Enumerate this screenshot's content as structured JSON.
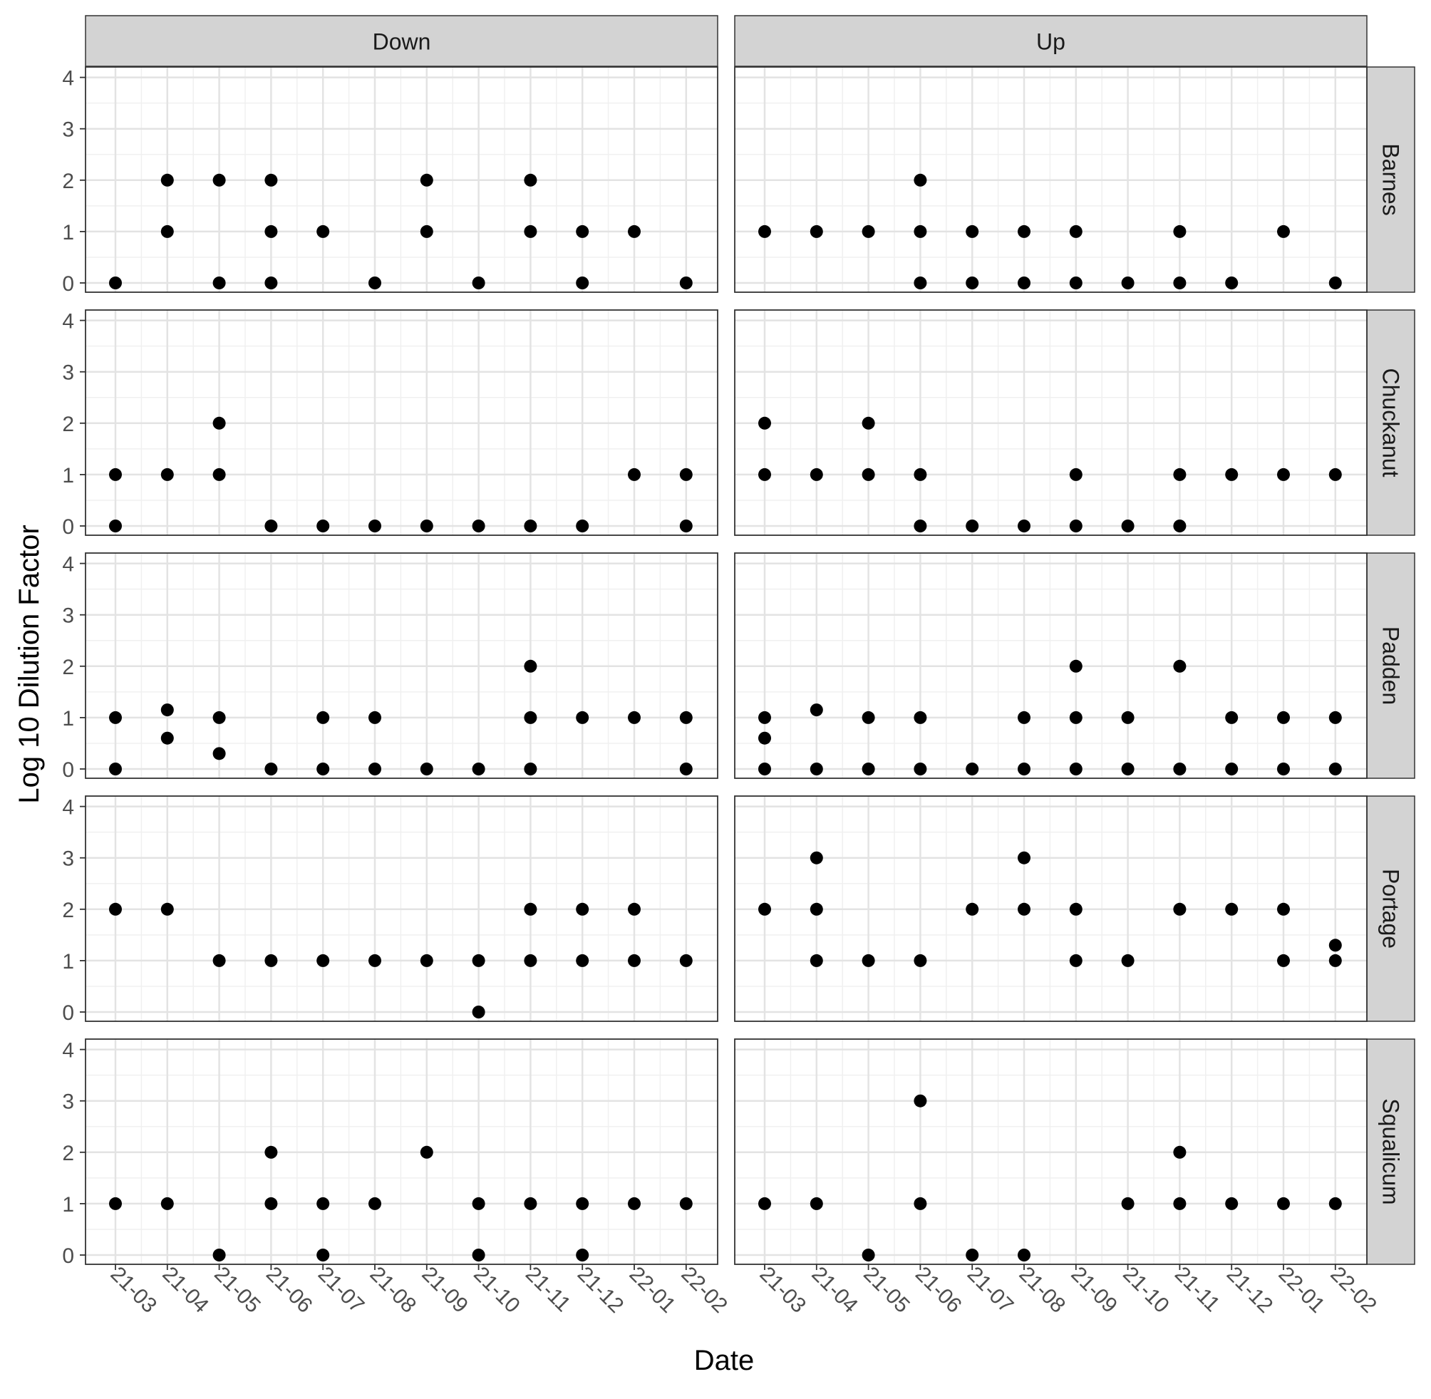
{
  "chart_data": {
    "type": "scatter",
    "xlabel": "Date",
    "ylabel": "Log 10 Dilution Factor",
    "x_ticks": [
      "21-03",
      "21-04",
      "21-05",
      "21-06",
      "21-07",
      "21-08",
      "21-09",
      "21-10",
      "21-11",
      "21-12",
      "22-01",
      "22-02"
    ],
    "y_ticks": [
      0,
      1,
      2,
      3,
      4
    ],
    "ylim": [
      0,
      4
    ],
    "grid": true,
    "point_color": "#000000",
    "strip_color": "#d3d3d3",
    "column_facets": [
      "Down",
      "Up"
    ],
    "row_facets": [
      "Barnes",
      "Chuckanut",
      "Padden",
      "Portage",
      "Squalicum"
    ],
    "panels": [
      {
        "site": "Barnes",
        "direction": "Down",
        "points": [
          [
            "21-03",
            0
          ],
          [
            "21-04",
            1
          ],
          [
            "21-04",
            2
          ],
          [
            "21-05",
            0
          ],
          [
            "21-05",
            2
          ],
          [
            "21-06",
            0
          ],
          [
            "21-06",
            1
          ],
          [
            "21-06",
            2
          ],
          [
            "21-07",
            1
          ],
          [
            "21-08",
            0
          ],
          [
            "21-09",
            1
          ],
          [
            "21-09",
            2
          ],
          [
            "21-10",
            0
          ],
          [
            "21-11",
            1
          ],
          [
            "21-11",
            2
          ],
          [
            "21-12",
            0
          ],
          [
            "21-12",
            1
          ],
          [
            "22-01",
            1
          ],
          [
            "22-02",
            0
          ]
        ]
      },
      {
        "site": "Barnes",
        "direction": "Up",
        "points": [
          [
            "21-03",
            1
          ],
          [
            "21-04",
            1
          ],
          [
            "21-05",
            1
          ],
          [
            "21-06",
            0
          ],
          [
            "21-06",
            1
          ],
          [
            "21-06",
            2
          ],
          [
            "21-07",
            0
          ],
          [
            "21-07",
            1
          ],
          [
            "21-08",
            0
          ],
          [
            "21-08",
            1
          ],
          [
            "21-09",
            0
          ],
          [
            "21-09",
            1
          ],
          [
            "21-10",
            0
          ],
          [
            "21-11",
            0
          ],
          [
            "21-11",
            1
          ],
          [
            "21-12",
            0
          ],
          [
            "22-01",
            1
          ],
          [
            "22-02",
            0
          ]
        ]
      },
      {
        "site": "Chuckanut",
        "direction": "Down",
        "points": [
          [
            "21-03",
            0
          ],
          [
            "21-03",
            1
          ],
          [
            "21-04",
            1
          ],
          [
            "21-05",
            1
          ],
          [
            "21-05",
            2
          ],
          [
            "21-06",
            0
          ],
          [
            "21-07",
            0
          ],
          [
            "21-08",
            0
          ],
          [
            "21-09",
            0
          ],
          [
            "21-10",
            0
          ],
          [
            "21-11",
            0
          ],
          [
            "21-12",
            0
          ],
          [
            "22-01",
            1
          ],
          [
            "22-02",
            0
          ],
          [
            "22-02",
            1
          ]
        ]
      },
      {
        "site": "Chuckanut",
        "direction": "Up",
        "points": [
          [
            "21-03",
            1
          ],
          [
            "21-03",
            2
          ],
          [
            "21-04",
            1
          ],
          [
            "21-05",
            1
          ],
          [
            "21-05",
            2
          ],
          [
            "21-06",
            0
          ],
          [
            "21-06",
            1
          ],
          [
            "21-07",
            0
          ],
          [
            "21-08",
            0
          ],
          [
            "21-09",
            0
          ],
          [
            "21-09",
            1
          ],
          [
            "21-10",
            0
          ],
          [
            "21-11",
            0
          ],
          [
            "21-11",
            1
          ],
          [
            "21-12",
            1
          ],
          [
            "22-01",
            1
          ],
          [
            "22-02",
            1
          ]
        ]
      },
      {
        "site": "Padden",
        "direction": "Down",
        "points": [
          [
            "21-03",
            0
          ],
          [
            "21-03",
            1
          ],
          [
            "21-04",
            0.6
          ],
          [
            "21-04",
            1.15
          ],
          [
            "21-05",
            0.3
          ],
          [
            "21-05",
            1
          ],
          [
            "21-06",
            0
          ],
          [
            "21-07",
            0
          ],
          [
            "21-07",
            1
          ],
          [
            "21-08",
            0
          ],
          [
            "21-08",
            1
          ],
          [
            "21-09",
            0
          ],
          [
            "21-10",
            0
          ],
          [
            "21-11",
            0
          ],
          [
            "21-11",
            1
          ],
          [
            "21-11",
            2
          ],
          [
            "21-12",
            1
          ],
          [
            "22-01",
            1
          ],
          [
            "22-02",
            0
          ],
          [
            "22-02",
            1
          ]
        ]
      },
      {
        "site": "Padden",
        "direction": "Up",
        "points": [
          [
            "21-03",
            0
          ],
          [
            "21-03",
            0.6
          ],
          [
            "21-03",
            1
          ],
          [
            "21-04",
            0
          ],
          [
            "21-04",
            1.15
          ],
          [
            "21-05",
            0
          ],
          [
            "21-05",
            1
          ],
          [
            "21-06",
            0
          ],
          [
            "21-06",
            1
          ],
          [
            "21-07",
            0
          ],
          [
            "21-08",
            0
          ],
          [
            "21-08",
            1
          ],
          [
            "21-09",
            0
          ],
          [
            "21-09",
            1
          ],
          [
            "21-09",
            2
          ],
          [
            "21-10",
            0
          ],
          [
            "21-10",
            1
          ],
          [
            "21-11",
            0
          ],
          [
            "21-11",
            2
          ],
          [
            "21-12",
            0
          ],
          [
            "21-12",
            1
          ],
          [
            "22-01",
            0
          ],
          [
            "22-01",
            1
          ],
          [
            "22-02",
            0
          ],
          [
            "22-02",
            1
          ]
        ]
      },
      {
        "site": "Portage",
        "direction": "Down",
        "points": [
          [
            "21-03",
            2
          ],
          [
            "21-04",
            2
          ],
          [
            "21-05",
            1
          ],
          [
            "21-06",
            1
          ],
          [
            "21-07",
            1
          ],
          [
            "21-08",
            1
          ],
          [
            "21-09",
            1
          ],
          [
            "21-10",
            0
          ],
          [
            "21-10",
            1
          ],
          [
            "21-11",
            1
          ],
          [
            "21-11",
            2
          ],
          [
            "21-12",
            1
          ],
          [
            "21-12",
            2
          ],
          [
            "22-01",
            1
          ],
          [
            "22-01",
            2
          ],
          [
            "22-02",
            1
          ]
        ]
      },
      {
        "site": "Portage",
        "direction": "Up",
        "points": [
          [
            "21-03",
            2
          ],
          [
            "21-04",
            1
          ],
          [
            "21-04",
            2
          ],
          [
            "21-04",
            3
          ],
          [
            "21-05",
            1
          ],
          [
            "21-06",
            1
          ],
          [
            "21-07",
            2
          ],
          [
            "21-08",
            2
          ],
          [
            "21-08",
            3
          ],
          [
            "21-09",
            1
          ],
          [
            "21-09",
            2
          ],
          [
            "21-10",
            1
          ],
          [
            "21-11",
            2
          ],
          [
            "21-12",
            2
          ],
          [
            "22-01",
            1
          ],
          [
            "22-01",
            2
          ],
          [
            "22-02",
            1
          ],
          [
            "22-02",
            1.3
          ]
        ]
      },
      {
        "site": "Squalicum",
        "direction": "Down",
        "points": [
          [
            "21-03",
            1
          ],
          [
            "21-04",
            1
          ],
          [
            "21-05",
            0
          ],
          [
            "21-06",
            1
          ],
          [
            "21-06",
            2
          ],
          [
            "21-07",
            0
          ],
          [
            "21-07",
            1
          ],
          [
            "21-08",
            1
          ],
          [
            "21-09",
            2
          ],
          [
            "21-10",
            0
          ],
          [
            "21-10",
            1
          ],
          [
            "21-11",
            1
          ],
          [
            "21-12",
            0
          ],
          [
            "21-12",
            1
          ],
          [
            "22-01",
            1
          ],
          [
            "22-02",
            1
          ]
        ]
      },
      {
        "site": "Squalicum",
        "direction": "Up",
        "points": [
          [
            "21-03",
            1
          ],
          [
            "21-04",
            1
          ],
          [
            "21-05",
            0
          ],
          [
            "21-06",
            1
          ],
          [
            "21-06",
            3
          ],
          [
            "21-07",
            0
          ],
          [
            "21-08",
            0
          ],
          [
            "21-10",
            1
          ],
          [
            "21-11",
            1
          ],
          [
            "21-11",
            2
          ],
          [
            "21-12",
            1
          ],
          [
            "22-01",
            1
          ],
          [
            "22-02",
            1
          ]
        ]
      }
    ]
  }
}
